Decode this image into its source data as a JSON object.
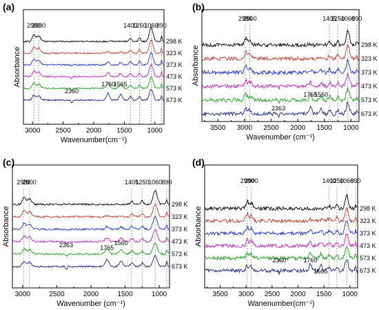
{
  "figure": {
    "colors": {
      "298 K": "#000000",
      "323 K": "#c0392b",
      "373 K": "#1f2fd8",
      "473 K": "#c020c0",
      "573 K": "#18a018",
      "673 K": "#1a237e"
    }
  },
  "chart_data": [
    {
      "type": "line",
      "panel_label": "(a)",
      "xlabel": "Wavenumber(cm⁻¹)",
      "ylabel": "Absorbance",
      "x_reversed": true,
      "xlim": [
        3150,
        850
      ],
      "xticks": [
        3000,
        2500,
        2000,
        1500,
        1000
      ],
      "grid": false,
      "legend": "labels at right end of each trace",
      "series": [
        {
          "name": "298 K"
        },
        {
          "name": "323 K"
        },
        {
          "name": "373 K"
        },
        {
          "name": "473 K"
        },
        {
          "name": "573 K"
        },
        {
          "name": "673 K"
        }
      ],
      "annotations": [
        {
          "text": "2980",
          "x": 2980
        },
        {
          "text": "2900",
          "x": 2900
        },
        {
          "text": "1400",
          "x": 1400
        },
        {
          "text": "1250",
          "x": 1250
        },
        {
          "text": "1060",
          "x": 1060
        },
        {
          "text": "890",
          "x": 890
        },
        {
          "text": "2360",
          "x": 2360
        },
        {
          "text": "1760",
          "x": 1760
        },
        {
          "text": "1565",
          "x": 1565
        }
      ]
    },
    {
      "type": "line",
      "panel_label": "(b)",
      "xlabel": "Wavenumber (cm⁻¹)",
      "ylabel": "Absorbance",
      "x_reversed": true,
      "xlim": [
        3800,
        850
      ],
      "xticks": [
        3500,
        3000,
        2500,
        2000,
        1500,
        1000
      ],
      "grid": false,
      "legend": "labels at right end of each trace",
      "series": [
        {
          "name": "298 K"
        },
        {
          "name": "323 K"
        },
        {
          "name": "373 K"
        },
        {
          "name": "473 K"
        },
        {
          "name": "573 K"
        },
        {
          "name": "673 K"
        }
      ],
      "annotations": [
        {
          "text": "2986",
          "x": 2986
        },
        {
          "text": "2900",
          "x": 2900
        },
        {
          "text": "1405",
          "x": 1405
        },
        {
          "text": "1250",
          "x": 1250
        },
        {
          "text": "1060",
          "x": 1060
        },
        {
          "text": "890",
          "x": 890
        },
        {
          "text": "2363",
          "x": 2363
        },
        {
          "text": "1765",
          "x": 1765
        },
        {
          "text": "1560",
          "x": 1560
        }
      ]
    },
    {
      "type": "line",
      "panel_label": "(c)",
      "xlabel": "Wavenumber (cm⁻¹)",
      "ylabel": "Absorbance",
      "x_reversed": true,
      "xlim": [
        3150,
        850
      ],
      "xticks": [
        3000,
        2500,
        2000,
        1500,
        1000
      ],
      "grid": false,
      "legend": "labels at right end of each trace",
      "series": [
        {
          "name": "298 K"
        },
        {
          "name": "323 K"
        },
        {
          "name": "373 K"
        },
        {
          "name": "473 K"
        },
        {
          "name": "573 K"
        },
        {
          "name": "673 K"
        }
      ],
      "annotations": [
        {
          "text": "2986",
          "x": 2986
        },
        {
          "text": "2900",
          "x": 2900
        },
        {
          "text": "1405",
          "x": 1405
        },
        {
          "text": "1250",
          "x": 1250
        },
        {
          "text": "1060",
          "x": 1060
        },
        {
          "text": "890",
          "x": 890
        },
        {
          "text": "2363",
          "x": 2363
        },
        {
          "text": "1765",
          "x": 1765
        },
        {
          "text": "1560",
          "x": 1560
        }
      ]
    },
    {
      "type": "line",
      "panel_label": "(d)",
      "xlabel": "Wanenumber(cm⁻¹)",
      "ylabel": "Absorbance",
      "x_reversed": true,
      "xlim": [
        3800,
        850
      ],
      "xticks": [
        3500,
        3000,
        2500,
        2000,
        1500,
        1000
      ],
      "grid": false,
      "legend": "labels at right end of each trace",
      "series": [
        {
          "name": "298 K"
        },
        {
          "name": "323 K"
        },
        {
          "name": "373 K"
        },
        {
          "name": "473 K"
        },
        {
          "name": "573 K"
        },
        {
          "name": "673 K"
        }
      ],
      "annotations": [
        {
          "text": "2980",
          "x": 2980
        },
        {
          "text": "2900",
          "x": 2900
        },
        {
          "text": "1400",
          "x": 1400
        },
        {
          "text": "1250",
          "x": 1250
        },
        {
          "text": "1060",
          "x": 1060
        },
        {
          "text": "890",
          "x": 890
        },
        {
          "text": "2360",
          "x": 2360
        },
        {
          "text": "1760",
          "x": 1760
        },
        {
          "text": "1565",
          "x": 1565
        }
      ]
    }
  ]
}
